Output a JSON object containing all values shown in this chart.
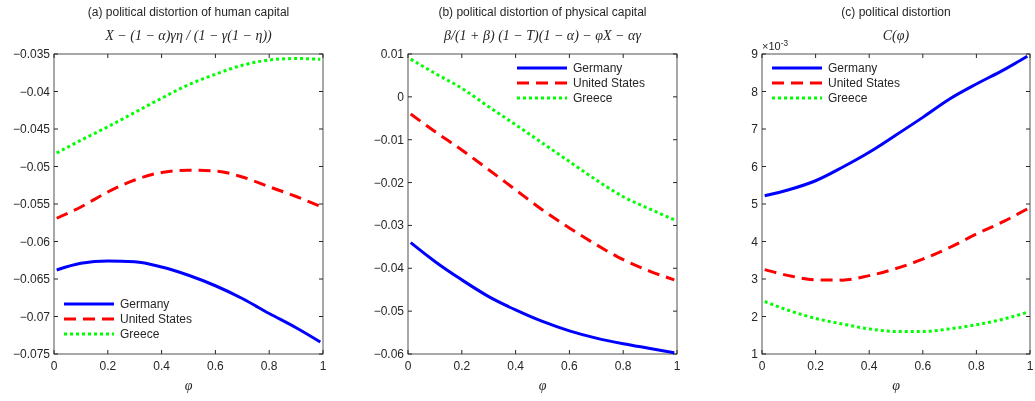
{
  "chart_data": [
    {
      "type": "line",
      "title": "(a) political distortion of human capital",
      "subtitle": "X − (1 − α)γη / (1 − γ(1 − η))",
      "xlabel": "φ",
      "x": [
        0.01,
        0.1,
        0.2,
        0.3,
        0.4,
        0.5,
        0.6,
        0.7,
        0.8,
        0.9,
        0.99
      ],
      "xlim": [
        0,
        1
      ],
      "xticks": [
        0,
        0.2,
        0.4,
        0.6,
        0.8,
        1
      ],
      "ylim": [
        -0.075,
        -0.035
      ],
      "yticks": [
        -0.075,
        -0.07,
        -0.065,
        -0.06,
        -0.055,
        -0.05,
        -0.045,
        -0.04,
        -0.035
      ],
      "legend": "bottom left",
      "series": [
        {
          "name": "Germany",
          "color": "#0000ff",
          "line_style": "solid",
          "values": [
            -0.0638,
            -0.0629,
            -0.0626,
            -0.0627,
            -0.0634,
            -0.0645,
            -0.0659,
            -0.0676,
            -0.0696,
            -0.0715,
            -0.0734
          ]
        },
        {
          "name": "United States",
          "color": "#ff0000",
          "line_style": "dashed",
          "values": [
            -0.0569,
            -0.0554,
            -0.0534,
            -0.0518,
            -0.0508,
            -0.0505,
            -0.0506,
            -0.0514,
            -0.0527,
            -0.054,
            -0.0553
          ]
        },
        {
          "name": "Greece",
          "color": "#00ff00",
          "line_style": "dotted",
          "values": [
            -0.0482,
            -0.0465,
            -0.0447,
            -0.0428,
            -0.0409,
            -0.0391,
            -0.0377,
            -0.0365,
            -0.0358,
            -0.0356,
            -0.0357
          ]
        }
      ]
    },
    {
      "type": "line",
      "title": "(b) political distortion of physical capital",
      "subtitle": "β/(1 + β) (1 − T)(1 − α) − φX − αγ",
      "xlabel": "φ",
      "x": [
        0.01,
        0.1,
        0.2,
        0.3,
        0.4,
        0.5,
        0.6,
        0.7,
        0.8,
        0.9,
        0.99
      ],
      "xlim": [
        0,
        1
      ],
      "xticks": [
        0,
        0.2,
        0.4,
        0.6,
        0.8,
        1
      ],
      "ylim": [
        -0.06,
        0.01
      ],
      "yticks": [
        -0.06,
        -0.05,
        -0.04,
        -0.03,
        -0.02,
        -0.01,
        0,
        0.01
      ],
      "legend": "top right",
      "series": [
        {
          "name": "Germany",
          "color": "#0000ff",
          "line_style": "solid",
          "values": [
            -0.034,
            -0.0384,
            -0.0427,
            -0.0466,
            -0.0497,
            -0.0524,
            -0.0546,
            -0.0563,
            -0.0576,
            -0.0587,
            -0.0597
          ]
        },
        {
          "name": "United States",
          "color": "#ff0000",
          "line_style": "dashed",
          "values": [
            -0.004,
            -0.0081,
            -0.0124,
            -0.017,
            -0.0217,
            -0.0264,
            -0.0306,
            -0.0345,
            -0.038,
            -0.0407,
            -0.0427
          ]
        },
        {
          "name": "Greece",
          "color": "#00ff00",
          "line_style": "dotted",
          "values": [
            0.0088,
            0.0055,
            0.002,
            -0.0023,
            -0.0065,
            -0.0108,
            -0.0151,
            -0.0194,
            -0.0233,
            -0.0262,
            -0.0287
          ]
        }
      ]
    },
    {
      "type": "line",
      "title": "(c) political distortion",
      "subtitle": "C(φ)",
      "xlabel": "φ",
      "annotations": [
        "×10$^{-3}$"
      ],
      "x": [
        0.01,
        0.1,
        0.2,
        0.3,
        0.4,
        0.5,
        0.6,
        0.7,
        0.8,
        0.9,
        0.99
      ],
      "xlim": [
        0,
        1
      ],
      "xticks": [
        0,
        0.2,
        0.4,
        0.6,
        0.8,
        1
      ],
      "ylim": [
        1,
        9
      ],
      "yticks": [
        1,
        2,
        3,
        4,
        5,
        6,
        7,
        8,
        9
      ],
      "legend": "top left",
      "series": [
        {
          "name": "Germany",
          "color": "#0000ff",
          "line_style": "solid",
          "values": [
            5.22,
            5.38,
            5.62,
            5.98,
            6.38,
            6.84,
            7.31,
            7.8,
            8.2,
            8.57,
            8.94
          ]
        },
        {
          "name": "United States",
          "color": "#ff0000",
          "line_style": "dashed",
          "values": [
            3.25,
            3.09,
            2.98,
            2.97,
            3.09,
            3.28,
            3.53,
            3.84,
            4.2,
            4.53,
            4.87
          ]
        },
        {
          "name": "Greece",
          "color": "#00ff00",
          "line_style": "dotted",
          "values": [
            2.4,
            2.16,
            1.95,
            1.8,
            1.67,
            1.6,
            1.6,
            1.67,
            1.78,
            1.93,
            2.11
          ]
        }
      ]
    }
  ]
}
